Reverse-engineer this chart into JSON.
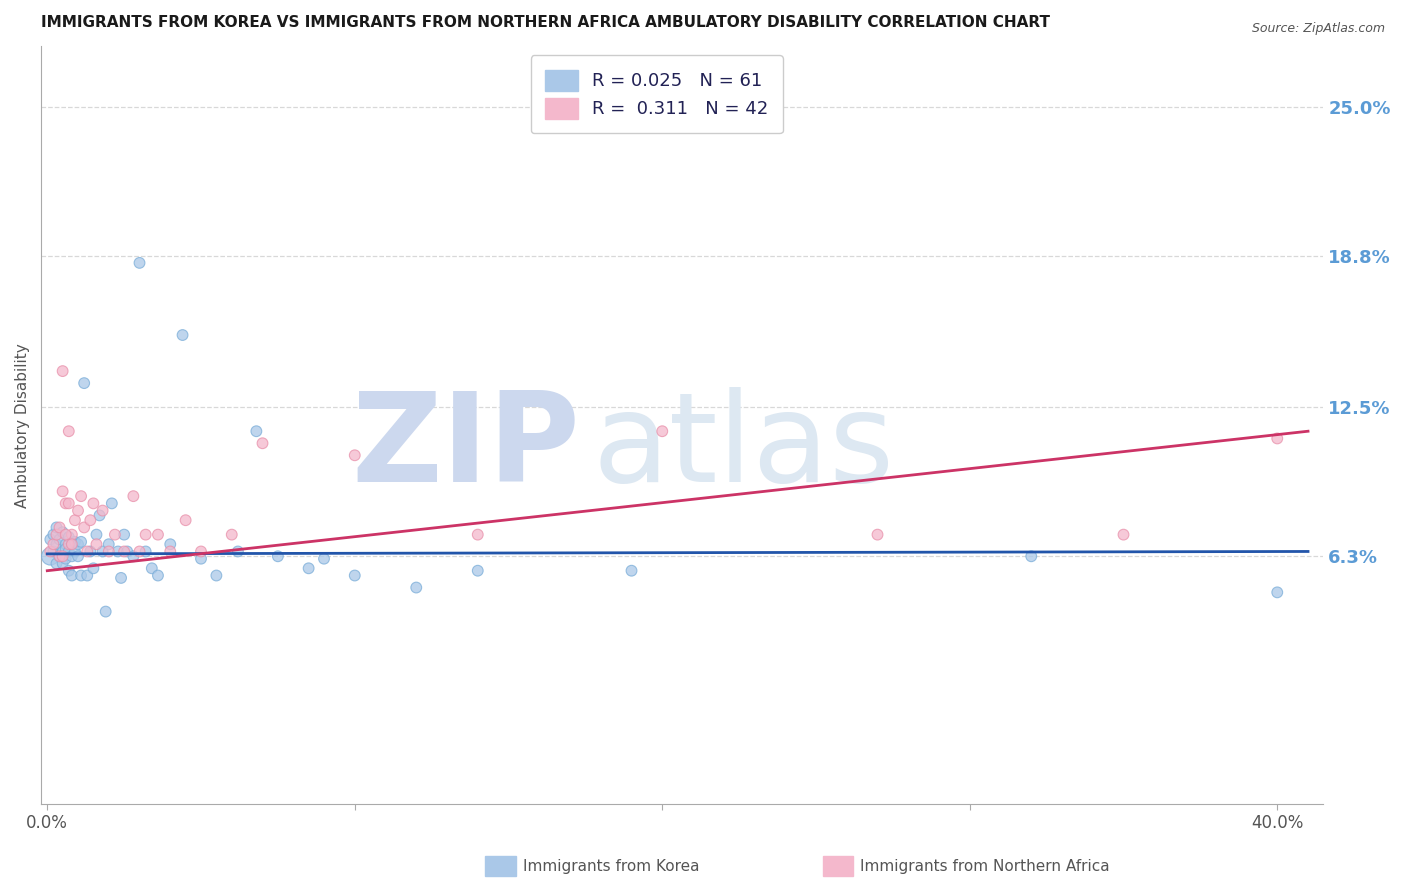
{
  "title": "IMMIGRANTS FROM KOREA VS IMMIGRANTS FROM NORTHERN AFRICA AMBULATORY DISABILITY CORRELATION CHART",
  "source": "Source: ZipAtlas.com",
  "ylabel": "Ambulatory Disability",
  "yticks": [
    "25.0%",
    "18.8%",
    "12.5%",
    "6.3%"
  ],
  "ytick_vals": [
    0.25,
    0.188,
    0.125,
    0.063
  ],
  "xlim": [
    -0.002,
    0.415
  ],
  "ylim": [
    -0.04,
    0.275
  ],
  "legend_r1": "R = 0.025",
  "legend_n1": "N = 61",
  "legend_r2": "R =  0.311",
  "legend_n2": "N = 42",
  "korea_color": "#aac8e8",
  "korea_edge_color": "#7aadd8",
  "nafrica_color": "#f4b8cc",
  "nafrica_edge_color": "#e890aa",
  "korea_line_color": "#2255aa",
  "nafrica_line_color": "#cc3366",
  "watermark_zip": "ZIP",
  "watermark_atlas": "atlas",
  "watermark_color": "#dce8f5",
  "grid_color": "#c8c8c8",
  "right_label_color": "#5b9bd5",
  "bottom_label_color": "#555555",
  "korea_scatter_x": [
    0.001,
    0.001,
    0.002,
    0.002,
    0.003,
    0.003,
    0.003,
    0.004,
    0.004,
    0.005,
    0.005,
    0.005,
    0.006,
    0.006,
    0.006,
    0.007,
    0.007,
    0.007,
    0.008,
    0.008,
    0.008,
    0.009,
    0.009,
    0.01,
    0.01,
    0.011,
    0.011,
    0.012,
    0.013,
    0.014,
    0.015,
    0.016,
    0.017,
    0.018,
    0.019,
    0.02,
    0.021,
    0.023,
    0.024,
    0.025,
    0.026,
    0.028,
    0.03,
    0.032,
    0.034,
    0.036,
    0.04,
    0.044,
    0.05,
    0.055,
    0.062,
    0.068,
    0.075,
    0.085,
    0.09,
    0.1,
    0.12,
    0.14,
    0.19,
    0.32,
    0.4
  ],
  "korea_scatter_y": [
    0.063,
    0.07,
    0.065,
    0.072,
    0.06,
    0.068,
    0.075,
    0.063,
    0.07,
    0.06,
    0.065,
    0.073,
    0.068,
    0.062,
    0.066,
    0.071,
    0.065,
    0.057,
    0.068,
    0.063,
    0.055,
    0.069,
    0.065,
    0.068,
    0.063,
    0.055,
    0.069,
    0.135,
    0.055,
    0.065,
    0.058,
    0.072,
    0.08,
    0.065,
    0.04,
    0.068,
    0.085,
    0.065,
    0.054,
    0.072,
    0.065,
    0.063,
    0.185,
    0.065,
    0.058,
    0.055,
    0.068,
    0.155,
    0.062,
    0.055,
    0.065,
    0.115,
    0.063,
    0.058,
    0.062,
    0.055,
    0.05,
    0.057,
    0.057,
    0.063,
    0.048
  ],
  "korea_scatter_size": [
    160,
    60,
    60,
    60,
    60,
    60,
    60,
    60,
    60,
    60,
    60,
    60,
    60,
    60,
    60,
    60,
    60,
    60,
    60,
    60,
    60,
    60,
    60,
    60,
    60,
    60,
    60,
    60,
    60,
    60,
    60,
    60,
    60,
    60,
    60,
    60,
    60,
    60,
    60,
    60,
    60,
    60,
    60,
    60,
    60,
    60,
    60,
    60,
    60,
    60,
    60,
    60,
    60,
    60,
    60,
    60,
    60,
    60,
    60,
    60,
    60
  ],
  "nafrica_scatter_x": [
    0.001,
    0.002,
    0.003,
    0.004,
    0.004,
    0.005,
    0.005,
    0.006,
    0.007,
    0.007,
    0.008,
    0.009,
    0.01,
    0.011,
    0.012,
    0.013,
    0.014,
    0.015,
    0.016,
    0.018,
    0.02,
    0.022,
    0.025,
    0.028,
    0.03,
    0.032,
    0.036,
    0.04,
    0.045,
    0.05,
    0.06,
    0.07,
    0.1,
    0.14,
    0.2,
    0.27,
    0.35,
    0.4,
    0.005,
    0.006,
    0.007,
    0.008
  ],
  "nafrica_scatter_y": [
    0.065,
    0.068,
    0.072,
    0.075,
    0.063,
    0.09,
    0.14,
    0.085,
    0.068,
    0.115,
    0.072,
    0.078,
    0.082,
    0.088,
    0.075,
    0.065,
    0.078,
    0.085,
    0.068,
    0.082,
    0.065,
    0.072,
    0.065,
    0.088,
    0.065,
    0.072,
    0.072,
    0.065,
    0.078,
    0.065,
    0.072,
    0.11,
    0.105,
    0.072,
    0.115,
    0.072,
    0.072,
    0.112,
    0.063,
    0.072,
    0.085,
    0.068
  ],
  "nafrica_scatter_size": [
    60,
    60,
    60,
    60,
    60,
    60,
    60,
    60,
    60,
    60,
    60,
    60,
    60,
    60,
    60,
    60,
    60,
    60,
    60,
    60,
    60,
    60,
    60,
    60,
    60,
    60,
    60,
    60,
    60,
    60,
    60,
    60,
    60,
    60,
    60,
    60,
    60,
    60,
    60,
    60,
    60,
    60
  ],
  "korea_line_x0": 0.0,
  "korea_line_x1": 0.41,
  "korea_line_y0": 0.064,
  "korea_line_y1": 0.065,
  "nafrica_line_x0": 0.0,
  "nafrica_line_x1": 0.41,
  "nafrica_line_y0": 0.057,
  "nafrica_line_y1": 0.115
}
